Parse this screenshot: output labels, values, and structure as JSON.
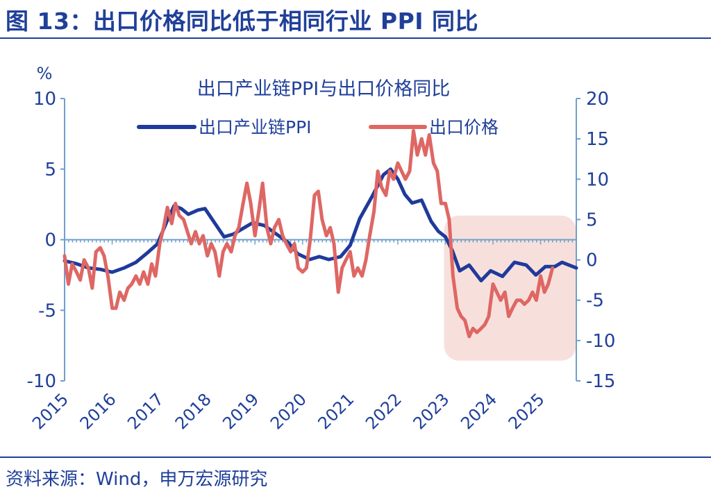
{
  "figure_title": "图 13：出口价格同比低于相同行业 PPI 同比",
  "source": "资料来源：Wind，申万宏源研究",
  "colors": {
    "ppi": "#1f3a9a",
    "price": "#de6764",
    "axis": "#6f9fcd",
    "text": "#1f3f99",
    "shade": "#f7e0dc"
  },
  "chart_data": {
    "type": "line",
    "title": "出口产业链PPI与出口价格同比",
    "left_unit": "%",
    "left_ylim": [
      -10,
      10
    ],
    "right_ylim": [
      -15,
      20
    ],
    "left_ticks": [
      "10",
      "5",
      "0",
      "-5",
      "-10"
    ],
    "right_ticks": [
      "20",
      "15",
      "10",
      "5",
      "0",
      "-5",
      "-10",
      "-15"
    ],
    "x_labels": [
      "2015",
      "2016",
      "2017",
      "2018",
      "2019",
      "2020",
      "2021",
      "2022",
      "2023",
      "2024",
      "2025"
    ],
    "x_start": 2015.0,
    "x_end": 2025.75,
    "highlight": {
      "x_from": 2023.0,
      "x_to": 2025.75
    },
    "series": [
      {
        "name": "出口产业链PPI",
        "axis": "left",
        "points": [
          [
            2015.0,
            -1.5
          ],
          [
            2015.25,
            -1.7
          ],
          [
            2015.5,
            -2.0
          ],
          [
            2015.75,
            -2.1
          ],
          [
            2016.0,
            -2.3
          ],
          [
            2016.25,
            -2.0
          ],
          [
            2016.5,
            -1.6
          ],
          [
            2016.75,
            -0.9
          ],
          [
            2016.95,
            -0.3
          ],
          [
            2017.15,
            1.3
          ],
          [
            2017.3,
            2.4
          ],
          [
            2017.45,
            2.2
          ],
          [
            2017.6,
            1.8
          ],
          [
            2017.8,
            2.1
          ],
          [
            2017.95,
            2.2
          ],
          [
            2018.15,
            1.2
          ],
          [
            2018.35,
            0.2
          ],
          [
            2018.55,
            0.4
          ],
          [
            2018.75,
            0.8
          ],
          [
            2018.95,
            1.2
          ],
          [
            2019.2,
            1.0
          ],
          [
            2019.45,
            0.4
          ],
          [
            2019.7,
            -0.2
          ],
          [
            2019.9,
            -1.0
          ],
          [
            2020.15,
            -1.4
          ],
          [
            2020.35,
            -1.2
          ],
          [
            2020.55,
            -1.4
          ],
          [
            2020.8,
            -1.2
          ],
          [
            2021.0,
            -0.4
          ],
          [
            2021.2,
            1.5
          ],
          [
            2021.45,
            3.0
          ],
          [
            2021.7,
            4.6
          ],
          [
            2021.85,
            5.0
          ],
          [
            2022.0,
            4.3
          ],
          [
            2022.15,
            3.2
          ],
          [
            2022.3,
            2.6
          ],
          [
            2022.5,
            2.8
          ],
          [
            2022.7,
            1.3
          ],
          [
            2022.85,
            0.6
          ],
          [
            2023.0,
            0.2
          ],
          [
            2023.15,
            -0.8
          ],
          [
            2023.3,
            -2.2
          ],
          [
            2023.5,
            -1.8
          ],
          [
            2023.75,
            -2.9
          ],
          [
            2023.95,
            -2.2
          ],
          [
            2024.2,
            -2.6
          ],
          [
            2024.45,
            -1.6
          ],
          [
            2024.7,
            -1.8
          ],
          [
            2024.9,
            -2.5
          ],
          [
            2025.1,
            -1.9
          ],
          [
            2025.3,
            -1.9
          ],
          [
            2025.45,
            -1.6
          ],
          [
            2025.75,
            -2.0
          ]
        ]
      },
      {
        "name": "出口价格",
        "axis": "right",
        "points": [
          [
            2015.0,
            0.5
          ],
          [
            2015.08,
            -3.0
          ],
          [
            2015.16,
            -0.5
          ],
          [
            2015.25,
            -1.5
          ],
          [
            2015.33,
            -2.5
          ],
          [
            2015.41,
            0.0
          ],
          [
            2015.5,
            -1.0
          ],
          [
            2015.58,
            -3.5
          ],
          [
            2015.66,
            1.0
          ],
          [
            2015.75,
            1.5
          ],
          [
            2015.83,
            0.5
          ],
          [
            2015.91,
            -2.0
          ],
          [
            2016.0,
            -6.0
          ],
          [
            2016.08,
            -6.0
          ],
          [
            2016.16,
            -4.0
          ],
          [
            2016.25,
            -5.0
          ],
          [
            2016.33,
            -3.5
          ],
          [
            2016.41,
            -3.0
          ],
          [
            2016.5,
            -2.0
          ],
          [
            2016.58,
            -3.0
          ],
          [
            2016.66,
            -1.5
          ],
          [
            2016.75,
            -3.0
          ],
          [
            2016.83,
            -0.5
          ],
          [
            2016.91,
            -2.0
          ],
          [
            2017.0,
            2.0
          ],
          [
            2017.08,
            4.0
          ],
          [
            2017.16,
            6.5
          ],
          [
            2017.25,
            4.5
          ],
          [
            2017.33,
            7.0
          ],
          [
            2017.41,
            5.5
          ],
          [
            2017.5,
            5.0
          ],
          [
            2017.58,
            3.5
          ],
          [
            2017.66,
            2.0
          ],
          [
            2017.75,
            3.5
          ],
          [
            2017.83,
            2.0
          ],
          [
            2017.91,
            3.0
          ],
          [
            2018.0,
            0.5
          ],
          [
            2018.08,
            2.0
          ],
          [
            2018.16,
            1.0
          ],
          [
            2018.25,
            -2.0
          ],
          [
            2018.33,
            1.0
          ],
          [
            2018.41,
            2.0
          ],
          [
            2018.5,
            1.0
          ],
          [
            2018.58,
            3.0
          ],
          [
            2018.66,
            4.0
          ],
          [
            2018.75,
            7.0
          ],
          [
            2018.83,
            9.5
          ],
          [
            2018.91,
            7.0
          ],
          [
            2019.0,
            3.0
          ],
          [
            2019.08,
            6.0
          ],
          [
            2019.16,
            9.5
          ],
          [
            2019.25,
            4.0
          ],
          [
            2019.33,
            2.0
          ],
          [
            2019.41,
            4.0
          ],
          [
            2019.5,
            5.0
          ],
          [
            2019.58,
            3.0
          ],
          [
            2019.66,
            2.0
          ],
          [
            2019.75,
            1.0
          ],
          [
            2019.83,
            2.0
          ],
          [
            2019.91,
            -1.0
          ],
          [
            2020.0,
            -1.5
          ],
          [
            2020.08,
            -1.0
          ],
          [
            2020.16,
            2.5
          ],
          [
            2020.25,
            8.0
          ],
          [
            2020.33,
            8.5
          ],
          [
            2020.41,
            5.0
          ],
          [
            2020.5,
            3.0
          ],
          [
            2020.58,
            4.0
          ],
          [
            2020.66,
            2.0
          ],
          [
            2020.75,
            -4.0
          ],
          [
            2020.83,
            -1.0
          ],
          [
            2020.91,
            0.0
          ],
          [
            2021.0,
            1.0
          ],
          [
            2021.08,
            -2.0
          ],
          [
            2021.16,
            -1.0
          ],
          [
            2021.25,
            -2.0
          ],
          [
            2021.33,
            0.0
          ],
          [
            2021.41,
            3.0
          ],
          [
            2021.5,
            6.0
          ],
          [
            2021.58,
            11.0
          ],
          [
            2021.66,
            9.0
          ],
          [
            2021.75,
            8.0
          ],
          [
            2021.83,
            11.0
          ],
          [
            2021.91,
            10.0
          ],
          [
            2022.0,
            12.0
          ],
          [
            2022.08,
            11.0
          ],
          [
            2022.16,
            10.0
          ],
          [
            2022.25,
            11.0
          ],
          [
            2022.33,
            16.0
          ],
          [
            2022.41,
            13.0
          ],
          [
            2022.5,
            15.0
          ],
          [
            2022.58,
            13.0
          ],
          [
            2022.66,
            15.5
          ],
          [
            2022.75,
            12.0
          ],
          [
            2022.83,
            11.0
          ],
          [
            2022.91,
            7.0
          ],
          [
            2023.0,
            7.0
          ],
          [
            2023.08,
            5.0
          ],
          [
            2023.16,
            -2.0
          ],
          [
            2023.25,
            -6.0
          ],
          [
            2023.33,
            -7.0
          ],
          [
            2023.41,
            -7.5
          ],
          [
            2023.5,
            -9.5
          ],
          [
            2023.58,
            -8.5
          ],
          [
            2023.66,
            -9.0
          ],
          [
            2023.75,
            -8.5
          ],
          [
            2023.83,
            -8.0
          ],
          [
            2023.91,
            -7.0
          ],
          [
            2024.0,
            -3.0
          ],
          [
            2024.08,
            -4.0
          ],
          [
            2024.16,
            -5.0
          ],
          [
            2024.25,
            -4.0
          ],
          [
            2024.33,
            -7.0
          ],
          [
            2024.41,
            -6.0
          ],
          [
            2024.5,
            -5.0
          ],
          [
            2024.58,
            -5.0
          ],
          [
            2024.66,
            -5.5
          ],
          [
            2024.75,
            -5.0
          ],
          [
            2024.83,
            -4.0
          ],
          [
            2024.91,
            -5.0
          ],
          [
            2025.0,
            -2.0
          ],
          [
            2025.08,
            -4.0
          ],
          [
            2025.16,
            -3.0
          ],
          [
            2025.25,
            -1.0
          ]
        ]
      }
    ]
  }
}
